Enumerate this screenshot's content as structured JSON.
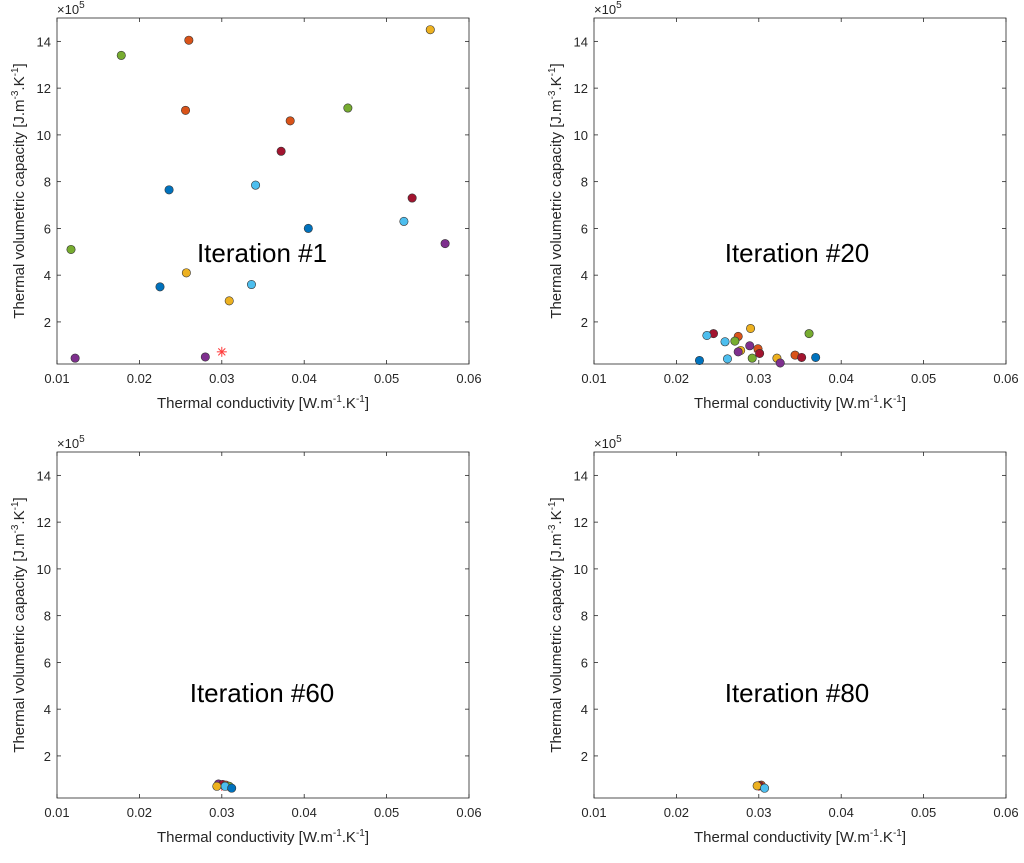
{
  "figure": {
    "colors": {
      "blue": "#0072BD",
      "orange": "#D95319",
      "yellow": "#EDB120",
      "purple": "#7E2F8E",
      "green": "#77AC30",
      "cyan": "#4DBEEE",
      "darkred": "#A2142F",
      "target": "#ff3b3b"
    }
  },
  "chart_data": [
    {
      "type": "scatter",
      "title": "Iteration #1",
      "xlabel": "Thermal conductivity [W.m",
      "ylabel": "Thermal volumetric capacity [J.m",
      "xlim": [
        0.01,
        0.06
      ],
      "ylim": [
        0.2,
        15
      ],
      "x_ticks": [
        "0.01",
        "0.02",
        "0.03",
        "0.04",
        "0.05",
        "0.06"
      ],
      "y_ticks": [
        "2",
        "4",
        "6",
        "8",
        "10",
        "12",
        "14"
      ],
      "y_exponent": "5",
      "grid": false,
      "points": [
        {
          "x": 0.026,
          "y": 14.05,
          "color": "orange"
        },
        {
          "x": 0.0553,
          "y": 14.5,
          "color": "yellow"
        },
        {
          "x": 0.0178,
          "y": 13.4,
          "color": "green"
        },
        {
          "x": 0.0453,
          "y": 11.15,
          "color": "green"
        },
        {
          "x": 0.0256,
          "y": 11.05,
          "color": "orange"
        },
        {
          "x": 0.0383,
          "y": 10.6,
          "color": "orange"
        },
        {
          "x": 0.0372,
          "y": 9.3,
          "color": "darkred"
        },
        {
          "x": 0.0341,
          "y": 7.85,
          "color": "cyan"
        },
        {
          "x": 0.0236,
          "y": 7.65,
          "color": "blue"
        },
        {
          "x": 0.0531,
          "y": 7.3,
          "color": "darkred"
        },
        {
          "x": 0.0521,
          "y": 6.3,
          "color": "cyan"
        },
        {
          "x": 0.0405,
          "y": 6.0,
          "color": "blue"
        },
        {
          "x": 0.0571,
          "y": 5.35,
          "color": "purple"
        },
        {
          "x": 0.0117,
          "y": 5.1,
          "color": "green"
        },
        {
          "x": 0.0257,
          "y": 4.1,
          "color": "yellow"
        },
        {
          "x": 0.0336,
          "y": 3.6,
          "color": "cyan"
        },
        {
          "x": 0.0225,
          "y": 3.5,
          "color": "blue"
        },
        {
          "x": 0.0309,
          "y": 2.9,
          "color": "yellow"
        },
        {
          "x": 0.028,
          "y": 0.5,
          "color": "purple"
        },
        {
          "x": 0.0122,
          "y": 0.45,
          "color": "purple"
        }
      ],
      "target": {
        "x": 0.03,
        "y": 0.72
      }
    },
    {
      "type": "scatter",
      "title": "Iteration #20",
      "xlabel": "Thermal conductivity [W.m",
      "ylabel": "Thermal volumetric capacity [J.m",
      "xlim": [
        0.01,
        0.06
      ],
      "ylim": [
        0.2,
        15
      ],
      "x_ticks": [
        "0.01",
        "0.02",
        "0.03",
        "0.04",
        "0.05",
        "0.06"
      ],
      "y_ticks": [
        "2",
        "4",
        "6",
        "8",
        "10",
        "12",
        "14"
      ],
      "y_exponent": "5",
      "grid": false,
      "points": [
        {
          "x": 0.029,
          "y": 1.72,
          "color": "yellow"
        },
        {
          "x": 0.0245,
          "y": 1.5,
          "color": "darkred"
        },
        {
          "x": 0.0361,
          "y": 1.5,
          "color": "green"
        },
        {
          "x": 0.0237,
          "y": 1.42,
          "color": "cyan"
        },
        {
          "x": 0.0275,
          "y": 1.38,
          "color": "orange"
        },
        {
          "x": 0.0271,
          "y": 1.18,
          "color": "green"
        },
        {
          "x": 0.0259,
          "y": 1.15,
          "color": "cyan"
        },
        {
          "x": 0.0289,
          "y": 0.98,
          "color": "purple"
        },
        {
          "x": 0.0299,
          "y": 0.85,
          "color": "orange"
        },
        {
          "x": 0.0278,
          "y": 0.78,
          "color": "yellow"
        },
        {
          "x": 0.0275,
          "y": 0.72,
          "color": "purple"
        },
        {
          "x": 0.0301,
          "y": 0.65,
          "color": "darkred"
        },
        {
          "x": 0.0344,
          "y": 0.58,
          "color": "orange"
        },
        {
          "x": 0.0352,
          "y": 0.48,
          "color": "darkred"
        },
        {
          "x": 0.0369,
          "y": 0.48,
          "color": "blue"
        },
        {
          "x": 0.0292,
          "y": 0.45,
          "color": "green"
        },
        {
          "x": 0.0322,
          "y": 0.45,
          "color": "yellow"
        },
        {
          "x": 0.0262,
          "y": 0.42,
          "color": "cyan"
        },
        {
          "x": 0.0228,
          "y": 0.35,
          "color": "blue"
        },
        {
          "x": 0.0326,
          "y": 0.2,
          "color": "purple"
        }
      ],
      "target": {
        "x": 0.03,
        "y": 0.72
      }
    },
    {
      "type": "scatter",
      "title": "Iteration #60",
      "xlabel": "Thermal conductivity [W.m",
      "ylabel": "Thermal volumetric capacity [J.m",
      "xlim": [
        0.01,
        0.06
      ],
      "ylim": [
        0.2,
        15
      ],
      "x_ticks": [
        "0.01",
        "0.02",
        "0.03",
        "0.04",
        "0.05",
        "0.06"
      ],
      "y_ticks": [
        "2",
        "4",
        "6",
        "8",
        "10",
        "12",
        "14"
      ],
      "y_exponent": "5",
      "grid": false,
      "points": [
        {
          "x": 0.0296,
          "y": 0.8,
          "color": "purple"
        },
        {
          "x": 0.0301,
          "y": 0.78,
          "color": "darkred"
        },
        {
          "x": 0.0305,
          "y": 0.75,
          "color": "orange"
        },
        {
          "x": 0.0309,
          "y": 0.7,
          "color": "green"
        },
        {
          "x": 0.0304,
          "y": 0.7,
          "color": "cyan"
        },
        {
          "x": 0.0294,
          "y": 0.7,
          "color": "yellow"
        },
        {
          "x": 0.0312,
          "y": 0.62,
          "color": "blue"
        }
      ],
      "target": {
        "x": 0.03,
        "y": 0.72
      }
    },
    {
      "type": "scatter",
      "title": "Iteration #80",
      "xlabel": "Thermal conductivity [W.m",
      "ylabel": "Thermal volumetric capacity [J.m",
      "xlim": [
        0.01,
        0.06
      ],
      "ylim": [
        0.2,
        15
      ],
      "x_ticks": [
        "0.01",
        "0.02",
        "0.03",
        "0.04",
        "0.05",
        "0.06"
      ],
      "y_ticks": [
        "2",
        "4",
        "6",
        "8",
        "10",
        "12",
        "14"
      ],
      "y_exponent": "5",
      "grid": false,
      "points": [
        {
          "x": 0.0303,
          "y": 0.75,
          "color": "orange"
        },
        {
          "x": 0.0301,
          "y": 0.72,
          "color": "darkred"
        },
        {
          "x": 0.0298,
          "y": 0.72,
          "color": "yellow"
        },
        {
          "x": 0.0307,
          "y": 0.62,
          "color": "cyan"
        }
      ],
      "target": {
        "x": 0.03,
        "y": 0.72
      }
    }
  ]
}
